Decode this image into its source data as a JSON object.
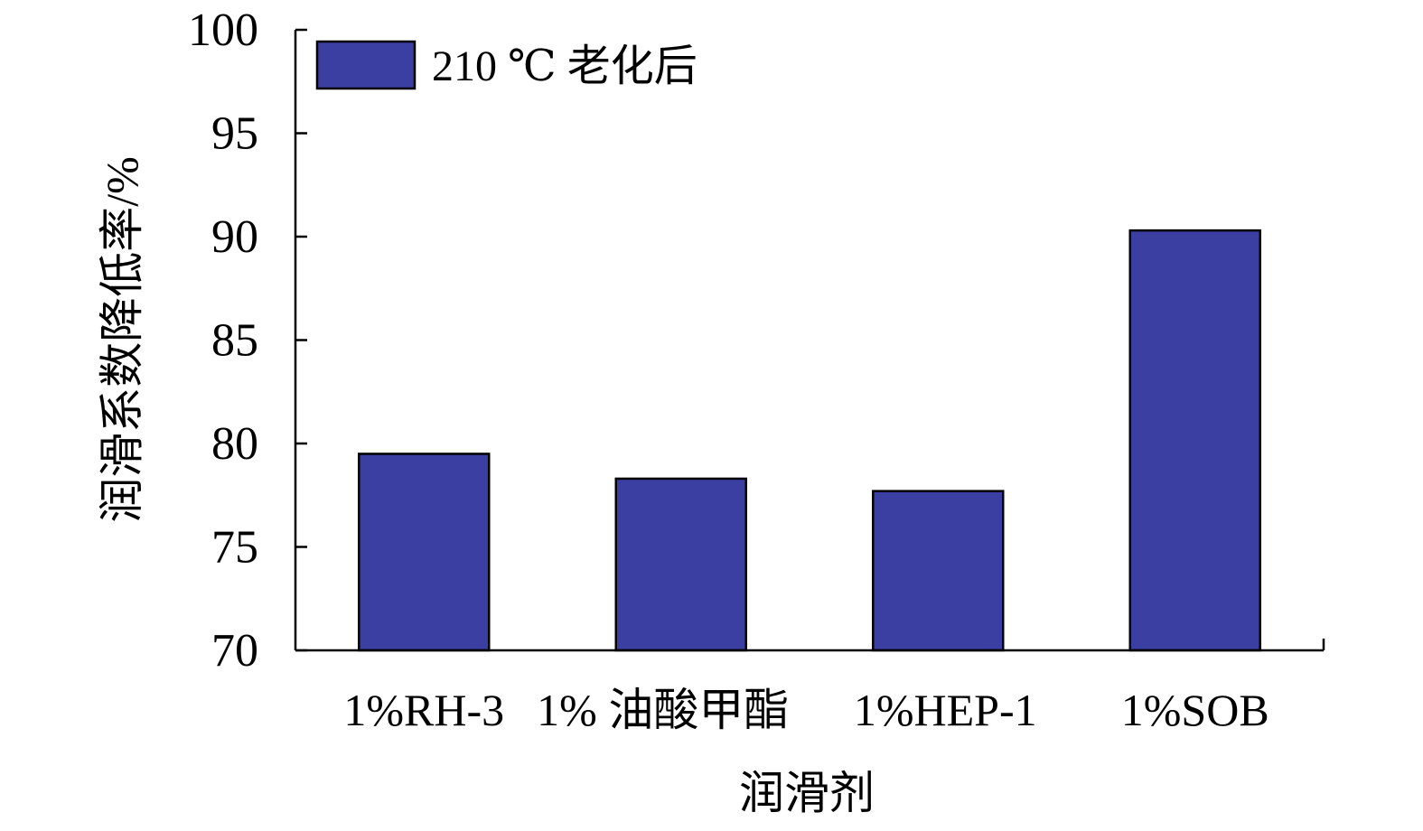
{
  "chart_data": {
    "type": "bar",
    "categories": [
      "1%RH-3",
      "1% 油酸甲酯",
      "1%HEP-1",
      "1%SOB"
    ],
    "series": [
      {
        "name": "210 ℃ 老化后",
        "values": [
          79.5,
          78.3,
          77.7,
          90.3
        ],
        "color": "#3a3fa1"
      }
    ],
    "xlabel": "润滑剂",
    "ylabel": "润滑系数降低率/%",
    "ylim": [
      70,
      100
    ],
    "yticks": [
      70,
      75,
      80,
      85,
      90,
      95,
      100
    ],
    "grid": false,
    "legend_position": "top-left"
  }
}
